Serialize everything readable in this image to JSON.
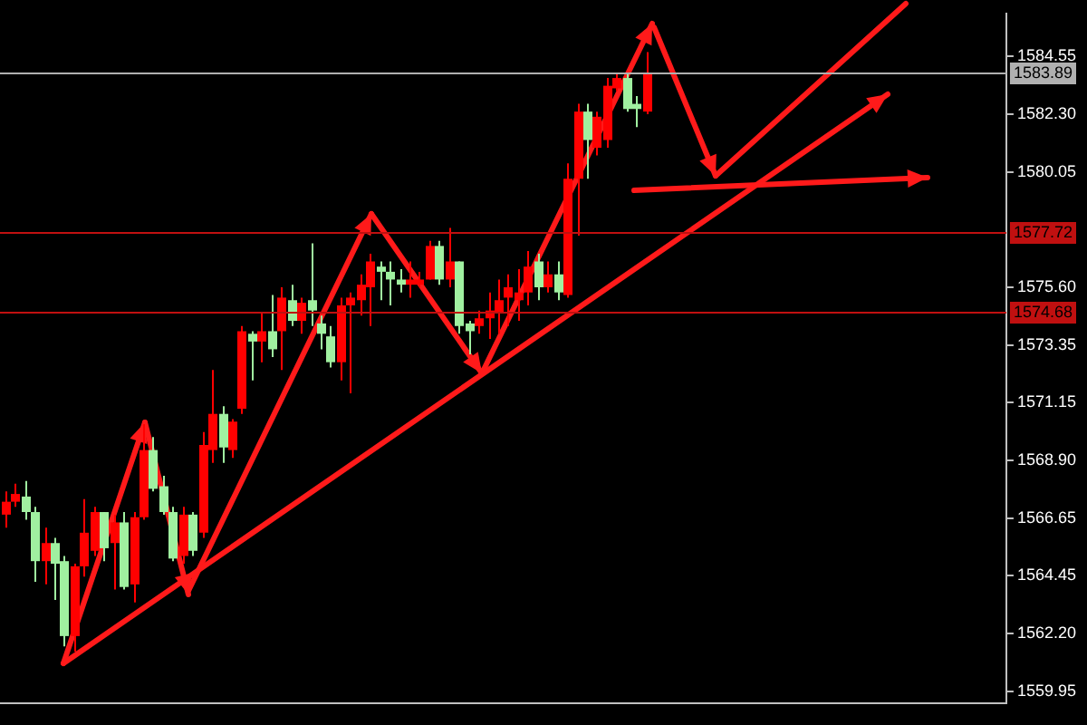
{
  "chart_data": {
    "type": "candlestick",
    "categories": [
      null,
      null,
      null,
      null,
      null,
      null,
      null,
      null,
      null,
      null,
      null,
      null,
      null,
      null,
      null,
      null,
      null,
      null,
      null,
      null,
      null,
      null,
      null,
      null,
      null,
      null,
      null,
      null,
      null,
      null,
      null,
      null,
      null,
      null,
      null,
      null,
      null,
      null,
      null,
      null,
      null,
      null,
      null,
      null,
      null,
      null,
      null,
      null,
      null,
      null,
      null,
      null,
      null,
      null,
      null,
      null,
      null,
      null,
      null,
      null,
      null,
      null,
      null,
      null,
      null,
      null,
      null,
      null,
      null,
      null,
      null,
      null,
      null,
      null,
      null,
      null,
      null,
      null,
      null,
      null,
      null,
      null,
      null,
      null,
      null,
      null,
      null,
      null,
      null,
      null,
      null,
      null,
      null,
      null,
      null,
      null,
      null,
      null,
      null,
      null,
      null,
      null
    ],
    "ohlc": [
      [
        1566.8,
        1567.7,
        1566.3,
        1567.3
      ],
      [
        1567.3,
        1568.0,
        1567.1,
        1567.6
      ],
      [
        1567.5,
        1568.1,
        1566.6,
        1566.9
      ],
      [
        1566.9,
        1567.1,
        1564.2,
        1565.0
      ],
      [
        1565.0,
        1566.3,
        1564.1,
        1565.7
      ],
      [
        1565.7,
        1565.9,
        1563.5,
        1564.9
      ],
      [
        1565.0,
        1565.2,
        1561.7,
        1562.1
      ],
      [
        1562.1,
        1564.9,
        1561.5,
        1564.8
      ],
      [
        1564.8,
        1567.4,
        1564.4,
        1566.1
      ],
      [
        1565.4,
        1567.1,
        1565.2,
        1566.9
      ],
      [
        1566.9,
        1566.9,
        1565.0,
        1565.5
      ],
      [
        1565.7,
        1566.8,
        1563.9,
        1566.5
      ],
      [
        1566.5,
        1566.9,
        1563.9,
        1564.0
      ],
      [
        1564.1,
        1566.9,
        1563.4,
        1566.7
      ],
      [
        1566.7,
        1570.3,
        1566.6,
        1569.3
      ],
      [
        1569.3,
        1569.8,
        1567.7,
        1567.8
      ],
      [
        1567.9,
        1568.3,
        1566.8,
        1566.9
      ],
      [
        1566.9,
        1567.1,
        1565.0,
        1565.1
      ],
      [
        1565.2,
        1567.1,
        1564.9,
        1566.8
      ],
      [
        1566.8,
        1566.9,
        1565.2,
        1565.4
      ],
      [
        1566.1,
        1570.0,
        1565.9,
        1569.5
      ],
      [
        1569.3,
        1572.4,
        1568.8,
        1570.7
      ],
      [
        1570.7,
        1571.0,
        1568.8,
        1569.4
      ],
      [
        1569.3,
        1570.5,
        1569.0,
        1570.4
      ],
      [
        1570.9,
        1574.1,
        1570.7,
        1573.9
      ],
      [
        1573.8,
        1573.9,
        1572.0,
        1573.5
      ],
      [
        1573.5,
        1574.6,
        1572.7,
        1573.9
      ],
      [
        1573.9,
        1575.3,
        1572.9,
        1573.2
      ],
      [
        1573.9,
        1575.6,
        1572.4,
        1575.2
      ],
      [
        1575.1,
        1575.7,
        1574.1,
        1574.3
      ],
      [
        1574.3,
        1575.2,
        1573.8,
        1575.0
      ],
      [
        1575.1,
        1577.3,
        1574.1,
        1574.7
      ],
      [
        1574.2,
        1574.5,
        1573.2,
        1573.8
      ],
      [
        1573.7,
        1574.1,
        1572.5,
        1572.7
      ],
      [
        1572.7,
        1575.2,
        1572.0,
        1574.9
      ],
      [
        1574.9,
        1575.4,
        1571.5,
        1575.2
      ],
      [
        1575.1,
        1576.1,
        1574.5,
        1575.7
      ],
      [
        1575.6,
        1576.9,
        1574.1,
        1576.6
      ],
      [
        1576.4,
        1576.6,
        1575.1,
        1576.2
      ],
      [
        1576.2,
        1576.6,
        1574.9,
        1575.9
      ],
      [
        1575.9,
        1576.3,
        1575.4,
        1575.7
      ],
      [
        1575.7,
        1576.6,
        1575.2,
        1575.9
      ],
      [
        1575.7,
        1576.2,
        1575.6,
        1575.9
      ],
      [
        1575.9,
        1577.4,
        1575.9,
        1577.2
      ],
      [
        1577.2,
        1577.4,
        1575.7,
        1575.9
      ],
      [
        1575.9,
        1577.9,
        1575.6,
        1576.6
      ],
      [
        1576.6,
        1576.6,
        1573.8,
        1574.1
      ],
      [
        1574.2,
        1574.3,
        1573.0,
        1573.9
      ],
      [
        1574.1,
        1574.7,
        1573.8,
        1574.4
      ],
      [
        1574.4,
        1575.4,
        1573.6,
        1574.7
      ],
      [
        1574.6,
        1575.9,
        1573.8,
        1575.1
      ],
      [
        1575.2,
        1576.1,
        1574.1,
        1575.6
      ],
      [
        1575.1,
        1576.3,
        1574.3,
        1575.4
      ],
      [
        1575.4,
        1577.0,
        1574.9,
        1576.4
      ],
      [
        1576.6,
        1576.9,
        1575.1,
        1575.6
      ],
      [
        1575.6,
        1576.6,
        1575.4,
        1576.1
      ],
      [
        1576.1,
        1576.6,
        1575.1,
        1575.4
      ],
      [
        1575.3,
        1580.4,
        1575.2,
        1579.8
      ],
      [
        1579.8,
        1582.7,
        1577.6,
        1582.4
      ],
      [
        1582.4,
        1582.7,
        1579.8,
        1581.3
      ],
      [
        1581.0,
        1582.4,
        1580.7,
        1582.2
      ],
      [
        1581.3,
        1583.7,
        1581.0,
        1583.4
      ],
      [
        1583.3,
        1583.9,
        1583.2,
        1583.7
      ],
      [
        1583.7,
        1583.9,
        1582.4,
        1582.5
      ],
      [
        1582.7,
        1583.0,
        1581.8,
        1582.5
      ],
      [
        1582.4,
        1584.7,
        1582.3,
        1583.89
      ],
      null,
      null,
      null,
      null,
      null,
      null,
      null,
      null,
      null,
      null,
      null,
      null,
      null,
      null,
      null,
      null,
      null,
      null,
      null,
      null,
      null,
      null,
      null,
      null,
      null,
      null,
      null,
      null,
      null,
      null,
      null,
      null,
      null,
      null,
      null,
      null
    ],
    "colors": [
      "#ff0000",
      "#ff0000",
      "#a0f0a0",
      "#a0f0a0",
      "#ff0000",
      "#a0f0a0",
      "#a0f0a0",
      "#ff0000",
      "#ff0000",
      "#ff0000",
      "#a0f0a0",
      "#ff0000",
      "#a0f0a0",
      "#ff0000",
      "#ff0000",
      "#a0f0a0",
      "#a0f0a0",
      "#a0f0a0",
      "#ff0000",
      "#a0f0a0",
      "#ff0000",
      "#ff0000",
      "#a0f0a0",
      "#ff0000",
      "#ff0000",
      "#a0f0a0",
      "#ff0000",
      "#a0f0a0",
      "#ff0000",
      "#a0f0a0",
      "#ff0000",
      "#a0f0a0",
      "#a0f0a0",
      "#a0f0a0",
      "#ff0000",
      "#ff0000",
      "#ff0000",
      "#ff0000",
      "#a0f0a0",
      "#a0f0a0",
      "#a0f0a0",
      "#ff0000",
      "#ff0000",
      "#ff0000",
      "#a0f0a0",
      "#ff0000",
      "#a0f0a0",
      "#a0f0a0",
      "#ff0000",
      "#ff0000",
      "#ff0000",
      "#ff0000",
      "#ff0000",
      "#ff0000",
      "#a0f0a0",
      "#ff0000",
      "#a0f0a0",
      "#ff0000",
      "#ff0000",
      "#a0f0a0",
      "#ff0000",
      "#ff0000",
      "#ff0000",
      "#a0f0a0",
      "#a0f0a0",
      "#ff0000",
      null,
      null,
      null,
      null,
      null,
      null,
      null,
      null,
      null,
      null,
      null,
      null,
      null,
      null,
      null,
      null,
      null,
      null,
      null,
      null,
      null,
      null,
      null,
      null,
      null,
      null,
      null,
      null,
      null,
      null,
      null,
      null,
      null,
      null,
      null,
      null
    ],
    "ylim": [
      1559.5,
      1586.2
    ],
    "yticks": [
      1559.95,
      {
        "value": 1562.2,
        "label": "1562.20"
      },
      1564.45,
      1566.65,
      {
        "value": 1568.9,
        "label": "1568.90"
      },
      1571.15,
      1573.35,
      {
        "value": 1575.6,
        "label": "1575.60"
      },
      1580.05,
      {
        "value": 1582.3,
        "label": "1582.30"
      },
      1584.55
    ],
    "tick_labels": "y",
    "ref_lines": [
      {
        "axis": "y",
        "value": 1583.89,
        "label": "1583.89",
        "color": "#b0b0b0"
      },
      {
        "axis": "y",
        "value": 1577.72,
        "label": "1577.72",
        "color": "#c01010"
      },
      {
        "axis": "y",
        "value": 1574.68,
        "label": "1574.68",
        "color": "#c01010"
      }
    ]
  }
}
